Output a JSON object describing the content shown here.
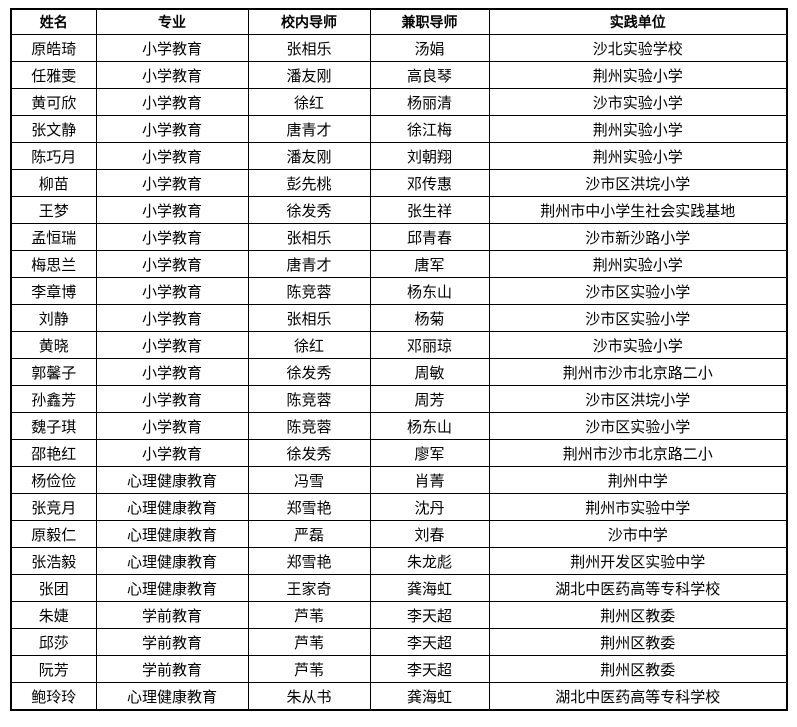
{
  "colors": {
    "border": "#000000",
    "text": "#000000",
    "background": "#ffffff"
  },
  "table": {
    "headers": [
      "姓名",
      "专业",
      "校内导师",
      "兼职导师",
      "实践单位"
    ],
    "rows": [
      [
        "原皓琦",
        "小学教育",
        "张相乐",
        "汤娟",
        "沙北实验学校"
      ],
      [
        "任雅雯",
        "小学教育",
        "潘友刚",
        "高良琴",
        "荆州实验小学"
      ],
      [
        "黄可欣",
        "小学教育",
        "徐红",
        "杨丽清",
        "沙市实验小学"
      ],
      [
        "张文静",
        "小学教育",
        "唐青才",
        "徐江梅",
        "荆州实验小学"
      ],
      [
        "陈巧月",
        "小学教育",
        "潘友刚",
        "刘朝翔",
        "荆州实验小学"
      ],
      [
        "柳苗",
        "小学教育",
        "彭先桃",
        "邓传惠",
        "沙市区洪垸小学"
      ],
      [
        "王梦",
        "小学教育",
        "徐发秀",
        "张生祥",
        "荆州市中小学生社会实践基地"
      ],
      [
        "孟恒瑞",
        "小学教育",
        "张相乐",
        "邱青春",
        "沙市新沙路小学"
      ],
      [
        "梅思兰",
        "小学教育",
        "唐青才",
        "唐军",
        "荆州实验小学"
      ],
      [
        "李章博",
        "小学教育",
        "陈竞蓉",
        "杨东山",
        "沙市区实验小学"
      ],
      [
        "刘静",
        "小学教育",
        "张相乐",
        "杨菊",
        "沙市区实验小学"
      ],
      [
        "黄晓",
        "小学教育",
        "徐红",
        "邓丽琼",
        "沙市实验小学"
      ],
      [
        "郭馨子",
        "小学教育",
        "徐发秀",
        "周敏",
        "荆州市沙市北京路二小"
      ],
      [
        "孙鑫芳",
        "小学教育",
        "陈竞蓉",
        "周芳",
        "沙市区洪垸小学"
      ],
      [
        "魏子琪",
        "小学教育",
        "陈竞蓉",
        "杨东山",
        "沙市区实验小学"
      ],
      [
        "邵艳红",
        "小学教育",
        "徐发秀",
        "廖军",
        "荆州市沙市北京路二小"
      ],
      [
        "杨俭俭",
        "心理健康教育",
        "冯雪",
        "肖菁",
        "荆州中学"
      ],
      [
        "张竞月",
        "心理健康教育",
        "郑雪艳",
        "沈丹",
        "荆州市实验中学"
      ],
      [
        "原毅仁",
        "心理健康教育",
        "严磊",
        "刘春",
        "沙市中学"
      ],
      [
        "张浩毅",
        "心理健康教育",
        "郑雪艳",
        "朱龙彪",
        "荆州开发区实验中学"
      ],
      [
        "张团",
        "心理健康教育",
        "王家奇",
        "龚海虹",
        "湖北中医药高等专科学校"
      ],
      [
        "朱婕",
        "学前教育",
        "芦苇",
        "李天超",
        "荆州区教委"
      ],
      [
        "邱莎",
        "学前教育",
        "芦苇",
        "李天超",
        "荆州区教委"
      ],
      [
        "阮芳",
        "学前教育",
        "芦苇",
        "李天超",
        "荆州区教委"
      ],
      [
        "鲍玲玲",
        "心理健康教育",
        "朱从书",
        "龚海虹",
        "湖北中医药高等专科学校"
      ]
    ]
  }
}
